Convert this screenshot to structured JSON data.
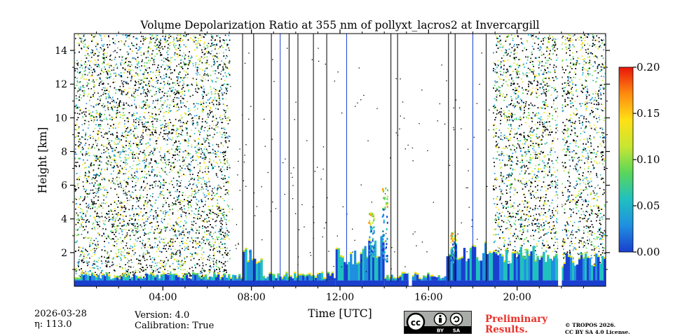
{
  "chart_data": {
    "type": "heatmap",
    "title": "Volume Depolarization Ratio at 355 nm of pollyxt_lacros2 at Invercargill",
    "xlabel": "Time [UTC]",
    "ylabel": "Height [km]",
    "xlim_hours": [
      0,
      24
    ],
    "ylim_km": [
      0.0,
      15.0
    ],
    "x_ticks": [
      {
        "value": 4,
        "label": "04:00"
      },
      {
        "value": 8,
        "label": "08:00"
      },
      {
        "value": 12,
        "label": "12:00"
      },
      {
        "value": 16,
        "label": "16:00"
      },
      {
        "value": 20,
        "label": "20:00"
      }
    ],
    "y_ticks": [
      {
        "value": 2,
        "label": "2"
      },
      {
        "value": 4,
        "label": "4"
      },
      {
        "value": 6,
        "label": "6"
      },
      {
        "value": 8,
        "label": "8"
      },
      {
        "value": 10,
        "label": "10"
      },
      {
        "value": 12,
        "label": "12"
      },
      {
        "value": 14,
        "label": "14"
      }
    ],
    "colorbar": {
      "range": [
        0.0,
        0.2
      ],
      "ticks": [
        {
          "value": 0.0,
          "label": "0.00"
        },
        {
          "value": 0.05,
          "label": "0.05"
        },
        {
          "value": 0.1,
          "label": "0.10"
        },
        {
          "value": 0.15,
          "label": "0.15"
        },
        {
          "value": 0.2,
          "label": "0.20"
        }
      ],
      "colors": [
        "#1a3fcf",
        "#1f8fe0",
        "#21c0c0",
        "#5ad65a",
        "#c8e632",
        "#ffe016",
        "#ff8a10",
        "#e8150b"
      ]
    },
    "noise_periods_hours": [
      [
        0.0,
        7.0
      ],
      [
        18.9,
        24.0
      ]
    ],
    "aerosol_layer_segments": [
      {
        "t0": 0.0,
        "t1": 7.6,
        "top_km": 0.75
      },
      {
        "t0": 7.6,
        "t1": 8.5,
        "top_km": 2.4
      },
      {
        "t0": 8.5,
        "t1": 11.8,
        "top_km": 0.8
      },
      {
        "t0": 11.8,
        "t1": 13.0,
        "top_km": 2.3
      },
      {
        "t0": 13.0,
        "t1": 14.0,
        "top_km": 3.0
      },
      {
        "t0": 14.0,
        "t1": 16.8,
        "top_km": 0.8
      },
      {
        "t0": 16.8,
        "t1": 19.0,
        "top_km": 2.6
      },
      {
        "t0": 19.0,
        "t1": 22.0,
        "top_km": 2.4
      },
      {
        "t0": 22.0,
        "t1": 24.0,
        "top_km": 2.0
      }
    ],
    "plumes": [
      {
        "t": 14.0,
        "top_km": 6.0,
        "base_km": 1.5
      },
      {
        "t": 13.4,
        "top_km": 4.4,
        "base_km": 1.8
      },
      {
        "t": 17.1,
        "top_km": 3.3,
        "base_km": 1.2
      }
    ],
    "profile_gaps_hours": [
      7.6,
      8.1,
      8.9,
      9.3,
      9.7,
      10.1,
      10.8,
      11.4,
      12.3,
      14.3,
      14.6,
      16.9,
      17.2,
      18.0,
      18.6
    ],
    "data_gaps_hours": [
      [
        15.1,
        15.25
      ],
      [
        21.85,
        22.02
      ]
    ]
  },
  "footer": {
    "date": "2026-03-28",
    "eta_label": "η: 113.0",
    "version": "Version: 4.0",
    "calibration": "Calibration: True",
    "preliminary_line1": "Preliminary",
    "preliminary_line2": "Results.",
    "copyright_line1": "© TROPOS 2026.",
    "copyright_line2": "CC BY SA 4.0 License.",
    "badge_by": "BY",
    "badge_sa": "SA"
  }
}
